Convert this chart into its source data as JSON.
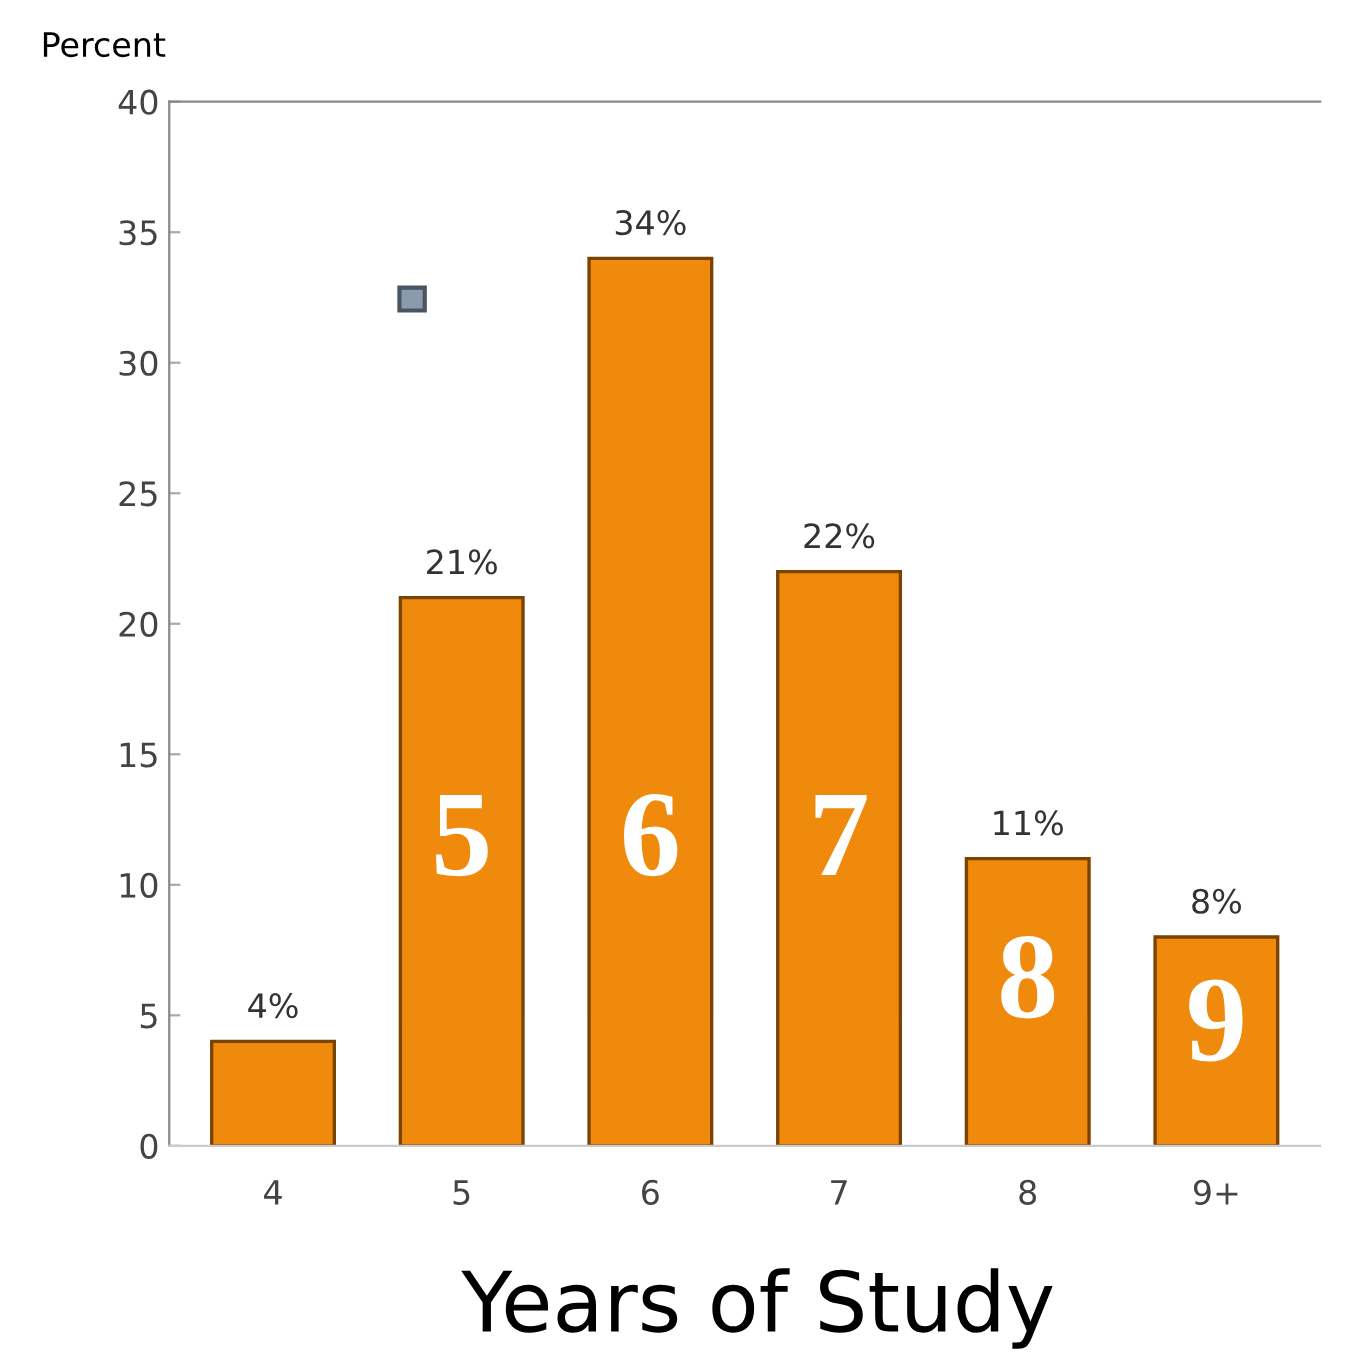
{
  "chart_data": {
    "type": "bar",
    "ylabel": "Percent",
    "xlabel": "Years of Study",
    "categories": [
      "4",
      "5",
      "6",
      "7",
      "8",
      "9+"
    ],
    "values": [
      4,
      21,
      34,
      22,
      11,
      8
    ],
    "value_labels": [
      "4%",
      "21%",
      "34%",
      "22%",
      "11%",
      "8%"
    ],
    "color": "#f08a0c",
    "ylim": [
      0,
      40
    ],
    "yticks": [
      0,
      5,
      10,
      15,
      20,
      25,
      30,
      35,
      40
    ],
    "annotations": [
      "5",
      "6",
      "7",
      "8",
      "9"
    ],
    "grid": false,
    "legend": false
  }
}
